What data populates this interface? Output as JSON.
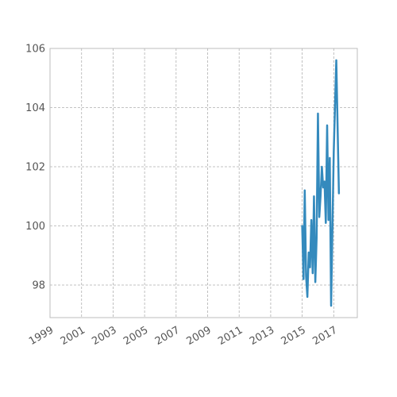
{
  "chart_data": {
    "type": "line",
    "title": "",
    "xlabel": "",
    "ylabel": "",
    "x_tick_labels": [
      "1999",
      "2001",
      "2003",
      "2005",
      "2007",
      "2009",
      "2011",
      "2013",
      "2015",
      "2017"
    ],
    "y_tick_labels": [
      "98",
      "100",
      "102",
      "104",
      "106"
    ],
    "xlim": [
      "1999-01-01",
      "2018-07-01"
    ],
    "ylim": [
      96.9,
      106
    ],
    "grid": true,
    "series": [
      {
        "color": "#348abd",
        "points": [
          [
            "2015-01-01",
            100.0
          ],
          [
            "2015-02-01",
            98.2
          ],
          [
            "2015-03-01",
            101.2
          ],
          [
            "2015-04-01",
            98.3
          ],
          [
            "2015-05-01",
            97.6
          ],
          [
            "2015-06-01",
            99.1
          ],
          [
            "2015-07-01",
            98.6
          ],
          [
            "2015-08-01",
            100.2
          ],
          [
            "2015-09-01",
            98.4
          ],
          [
            "2015-10-01",
            101.0
          ],
          [
            "2015-11-01",
            98.1
          ],
          [
            "2015-12-01",
            99.6
          ],
          [
            "2016-01-01",
            103.8
          ],
          [
            "2016-02-01",
            100.3
          ],
          [
            "2016-03-01",
            101.0
          ],
          [
            "2016-04-01",
            102.0
          ],
          [
            "2016-05-01",
            101.3
          ],
          [
            "2016-06-01",
            101.5
          ],
          [
            "2016-07-01",
            100.1
          ],
          [
            "2016-08-01",
            103.4
          ],
          [
            "2016-09-01",
            100.2
          ],
          [
            "2016-10-01",
            102.3
          ],
          [
            "2016-11-01",
            97.3
          ],
          [
            "2017-01-01",
            102.5
          ],
          [
            "2017-03-01",
            105.6
          ],
          [
            "2017-05-01",
            101.1
          ]
        ]
      }
    ]
  }
}
